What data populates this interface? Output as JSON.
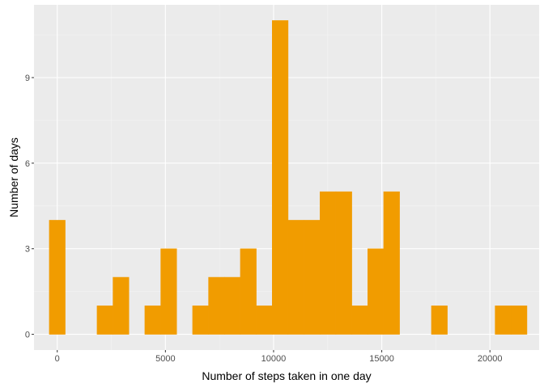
{
  "chart_data": {
    "type": "bar",
    "subtype": "histogram",
    "title": "",
    "xlabel": "Number of steps taken in one day",
    "ylabel": "Number of days",
    "xlim": [
      -1075,
      22275
    ],
    "ylim": [
      -0.55,
      11.55
    ],
    "x_ticks": [
      0,
      5000,
      10000,
      15000,
      20000
    ],
    "x_tick_labels": [
      "0",
      "5000",
      "10000",
      "15000",
      "20000"
    ],
    "y_ticks": [
      0,
      3,
      6,
      9
    ],
    "y_tick_labels": [
      "0",
      "3",
      "6",
      "9"
    ],
    "bin_width": 736,
    "bins": [
      {
        "x": 0,
        "count": 4
      },
      {
        "x": 736,
        "count": 0
      },
      {
        "x": 1472,
        "count": 0
      },
      {
        "x": 2208,
        "count": 1
      },
      {
        "x": 2944,
        "count": 2
      },
      {
        "x": 3680,
        "count": 0
      },
      {
        "x": 4416,
        "count": 1
      },
      {
        "x": 5152,
        "count": 3
      },
      {
        "x": 5888,
        "count": 0
      },
      {
        "x": 6624,
        "count": 1
      },
      {
        "x": 7360,
        "count": 2
      },
      {
        "x": 8096,
        "count": 2
      },
      {
        "x": 8832,
        "count": 3
      },
      {
        "x": 9568,
        "count": 1
      },
      {
        "x": 10304,
        "count": 11
      },
      {
        "x": 11040,
        "count": 4
      },
      {
        "x": 11776,
        "count": 4
      },
      {
        "x": 12512,
        "count": 5
      },
      {
        "x": 13248,
        "count": 5
      },
      {
        "x": 13984,
        "count": 1
      },
      {
        "x": 14720,
        "count": 3
      },
      {
        "x": 15456,
        "count": 5
      },
      {
        "x": 16192,
        "count": 0
      },
      {
        "x": 16928,
        "count": 0
      },
      {
        "x": 17664,
        "count": 1
      },
      {
        "x": 18400,
        "count": 0
      },
      {
        "x": 19136,
        "count": 0
      },
      {
        "x": 19872,
        "count": 0
      },
      {
        "x": 20608,
        "count": 1
      },
      {
        "x": 21344,
        "count": 1
      }
    ],
    "grid": true,
    "legend": "none",
    "colors": {
      "bar": "#F19C00",
      "panel_background": "#EBEBEB",
      "grid_major": "#FFFFFF",
      "grid_minor": "#F4F4F4",
      "tick_text": "#4D4D4D",
      "axis_title": "#000000"
    }
  }
}
